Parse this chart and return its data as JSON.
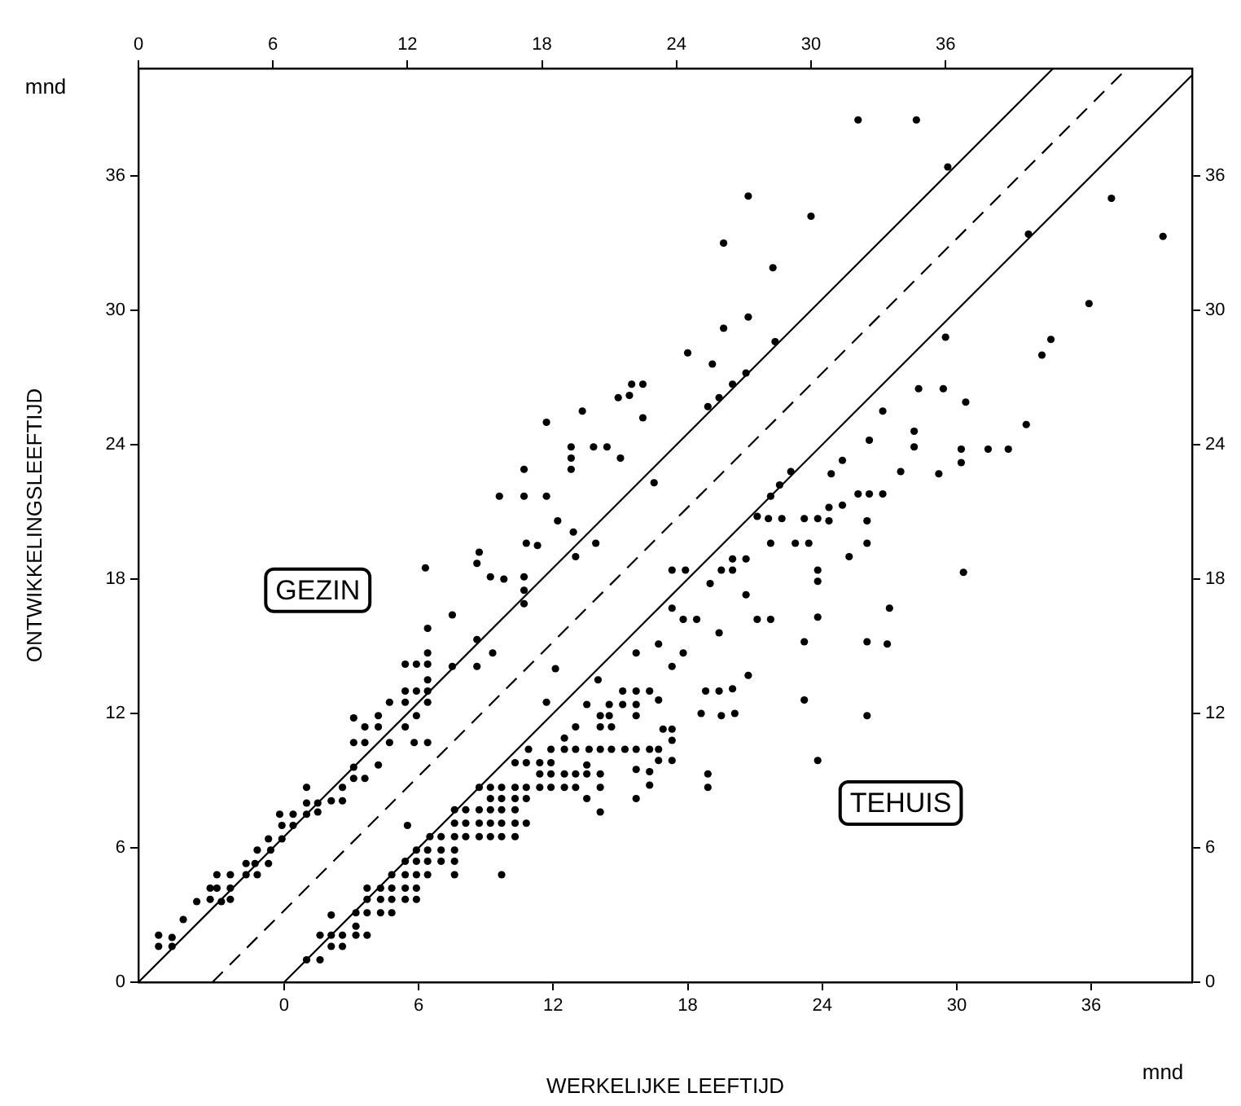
{
  "chart_data": {
    "type": "scatter",
    "xlabel": "WERKELIJKE LEEFTIJD",
    "ylabel": "ONTWIKKELINGSLEEFTIJD",
    "annotations": [
      "mnd",
      "mnd"
    ],
    "xlim": [
      -6.5,
      40.5
    ],
    "xticks": [
      0,
      6,
      12,
      18,
      24,
      30,
      36
    ],
    "x2lim": [
      0,
      47
    ],
    "x2ticks": [
      0,
      6,
      12,
      18,
      24,
      30,
      36
    ],
    "ylim": [
      0,
      40.8
    ],
    "yticks": [
      0,
      6,
      12,
      18,
      24,
      30,
      36
    ],
    "y2lim": [
      0,
      40.8
    ],
    "y2ticks": [
      0,
      6,
      12,
      18,
      24,
      30,
      36
    ],
    "grid": false,
    "marker": "circle",
    "series": [
      {
        "name": "GEZIN",
        "axis": "x2",
        "color": "#000000",
        "x": [
          0.9,
          1.5,
          0.9,
          1.5,
          2.0,
          2.6,
          3.2,
          3.7,
          4.1,
          3.2,
          3.5,
          4.1,
          3.5,
          4.1,
          4.8,
          5.2,
          4.8,
          5.3,
          5.8,
          5.3,
          5.9,
          5.8,
          6.4,
          6.4,
          6.9,
          6.3,
          6.9,
          7.5,
          7.5,
          8.0,
          7.5,
          8.0,
          8.6,
          9.1,
          9.1,
          9.6,
          9.6,
          10.1,
          9.6,
          10.1,
          11.2,
          10.1,
          10.7,
          9.6,
          10.7,
          10.7,
          11.2,
          11.9,
          11.9,
          12.4,
          12.9,
          11.9,
          12.4,
          12.3,
          12.9,
          12.9,
          11.9,
          12.4,
          12.9,
          12.9,
          12.9,
          12.9,
          12.8,
          14.0,
          14.0,
          15.1,
          15.8,
          15.1,
          15.2,
          15.1,
          15.7,
          16.3,
          17.2,
          17.2,
          17.2,
          17.3,
          17.8,
          16.1,
          17.2,
          18.2,
          27.2,
          30.0,
          26.1,
          28.3,
          27.2,
          26.1,
          24.5,
          25.6,
          28.4,
          27.1,
          26.5,
          25.9,
          25.4,
          22.0,
          22.5,
          21.4,
          21.9,
          22.5,
          19.8,
          18.2,
          19.3,
          20.3,
          20.9,
          19.3,
          19.3,
          21.5,
          17.2,
          18.7,
          19.4,
          20.4,
          19.5,
          23.0,
          32.1,
          34.7,
          36.1
        ],
        "values": [
          2.1,
          2.0,
          1.6,
          1.6,
          2.8,
          3.6,
          3.7,
          3.6,
          3.7,
          4.2,
          4.2,
          4.2,
          4.8,
          4.8,
          5.3,
          5.3,
          4.8,
          4.8,
          5.3,
          5.9,
          5.9,
          6.4,
          6.4,
          7.0,
          7.0,
          7.5,
          7.5,
          7.5,
          8.0,
          8.0,
          8.7,
          7.6,
          8.1,
          8.1,
          8.7,
          9.1,
          9.6,
          9.1,
          10.7,
          10.7,
          10.7,
          11.4,
          11.4,
          11.8,
          11.9,
          9.7,
          12.5,
          12.5,
          13.0,
          13.0,
          13.0,
          11.4,
          11.9,
          10.7,
          10.7,
          12.5,
          14.2,
          14.2,
          14.2,
          14.7,
          13.5,
          15.8,
          18.5,
          16.4,
          14.1,
          15.3,
          14.7,
          14.1,
          19.2,
          18.7,
          18.1,
          18.0,
          18.1,
          17.5,
          16.9,
          19.6,
          19.5,
          21.7,
          21.7,
          21.7,
          35.1,
          34.2,
          33.0,
          31.9,
          29.7,
          29.2,
          28.1,
          27.6,
          28.6,
          27.2,
          26.7,
          26.1,
          25.7,
          26.7,
          26.7,
          26.1,
          26.2,
          25.2,
          25.5,
          25.0,
          23.9,
          23.9,
          23.9,
          23.4,
          22.9,
          23.4,
          22.9,
          20.6,
          20.1,
          19.6,
          19.0,
          22.3,
          38.5,
          38.5,
          36.4
        ]
      },
      {
        "name": "TEHUIS",
        "axis": "y2",
        "color": "#000000",
        "x": [
          1.0,
          1.6,
          2.1,
          2.6,
          1.6,
          2.1,
          2.6,
          3.2,
          3.7,
          3.2,
          2.1,
          3.2,
          3.7,
          4.3,
          4.8,
          3.7,
          4.3,
          4.8,
          5.4,
          5.9,
          3.7,
          4.3,
          4.8,
          5.4,
          5.9,
          4.8,
          5.4,
          5.9,
          6.4,
          7.6,
          5.4,
          5.9,
          6.4,
          7.0,
          7.6,
          5.9,
          6.4,
          7.0,
          7.6,
          6.5,
          7.0,
          7.6,
          8.1,
          8.7,
          9.2,
          9.7,
          10.3,
          7.6,
          8.1,
          8.7,
          9.2,
          9.7,
          10.3,
          7.6,
          8.1,
          8.7,
          9.2,
          9.7,
          10.3,
          9.2,
          9.7,
          10.3,
          10.8,
          8.7,
          9.2,
          9.7,
          10.3,
          10.8,
          11.4,
          11.9,
          12.5,
          13.0,
          11.4,
          11.9,
          12.5,
          13.0,
          13.5,
          14.1,
          10.3,
          10.8,
          11.4,
          11.9,
          10.9,
          11.9,
          12.5,
          13.0,
          13.6,
          14.1,
          14.6,
          15.2,
          15.7,
          16.3,
          11.7,
          13.5,
          14.1,
          14.5,
          14.5,
          15.1,
          15.7,
          15.1,
          15.7,
          16.3,
          15.7,
          15.7,
          16.3,
          16.3,
          15.7,
          14.1,
          13.5,
          13.5,
          14.1,
          12.5,
          13.0,
          14.1,
          14.6,
          10.8,
          9.7,
          5.5,
          12.1,
          14.0,
          15.7,
          33.2,
          36.9,
          39.2,
          35.9,
          33.8,
          34.2,
          29.5,
          28.3,
          29.4,
          30.4,
          26.7,
          33.1,
          28.1,
          28.1,
          30.2,
          31.4,
          32.3,
          30.2,
          26.1,
          24.9,
          27.5,
          29.2,
          24.4,
          22.6,
          22.1,
          21.7,
          25.6,
          26.1,
          26.7,
          24.9,
          24.3,
          21.1,
          21.6,
          22.2,
          23.2,
          23.8,
          24.3,
          26.0,
          21.7,
          22.8,
          23.4,
          26.0,
          25.2,
          30.3,
          20.0,
          20.6,
          19.5,
          20.0,
          19.0,
          17.3,
          17.9,
          20.6,
          23.8,
          23.8,
          17.3,
          17.8,
          18.4,
          21.1,
          21.7,
          23.8,
          27.0,
          19.4,
          16.7,
          17.8,
          17.3,
          23.2,
          26.0,
          26.9,
          20.7,
          18.8,
          19.4,
          20.0,
          18.6,
          19.5,
          20.1,
          23.2,
          26.0,
          16.7,
          16.9,
          17.3,
          17.3,
          16.7,
          16.7,
          17.3,
          23.8,
          18.9,
          18.9
        ],
        "values": [
          1.0,
          1.0,
          1.6,
          1.6,
          2.1,
          2.1,
          2.1,
          2.1,
          2.1,
          2.5,
          3.0,
          3.1,
          3.1,
          3.1,
          3.1,
          3.7,
          3.7,
          3.7,
          3.7,
          3.7,
          4.2,
          4.2,
          4.2,
          4.2,
          4.2,
          4.8,
          4.8,
          4.8,
          4.8,
          4.8,
          5.4,
          5.4,
          5.4,
          5.4,
          5.4,
          5.9,
          5.9,
          5.9,
          5.9,
          6.5,
          6.5,
          6.5,
          6.5,
          6.5,
          6.5,
          6.5,
          6.5,
          7.1,
          7.1,
          7.1,
          7.1,
          7.1,
          7.1,
          7.7,
          7.7,
          7.7,
          7.7,
          7.7,
          7.7,
          8.2,
          8.2,
          8.2,
          8.2,
          8.7,
          8.7,
          8.7,
          8.7,
          8.7,
          8.7,
          8.7,
          8.7,
          8.7,
          9.3,
          9.3,
          9.3,
          9.3,
          9.3,
          9.3,
          9.8,
          9.8,
          9.8,
          9.8,
          10.4,
          10.4,
          10.4,
          10.4,
          10.4,
          10.4,
          10.4,
          10.4,
          10.4,
          10.4,
          12.5,
          12.4,
          11.9,
          11.9,
          12.4,
          12.4,
          12.4,
          13.0,
          13.0,
          13.0,
          11.9,
          9.5,
          9.4,
          8.8,
          8.2,
          7.6,
          8.2,
          9.7,
          8.7,
          10.9,
          11.4,
          11.4,
          11.4,
          7.1,
          4.8,
          7.0,
          14.0,
          13.5,
          14.7,
          33.4,
          35.0,
          33.3,
          30.3,
          28.0,
          28.7,
          28.8,
          26.5,
          26.5,
          25.9,
          25.5,
          24.9,
          24.6,
          23.9,
          23.8,
          23.8,
          23.8,
          23.2,
          24.2,
          23.3,
          22.8,
          22.7,
          22.7,
          22.8,
          22.2,
          21.7,
          21.8,
          21.8,
          21.8,
          21.3,
          21.2,
          20.8,
          20.7,
          20.7,
          20.7,
          20.7,
          20.6,
          20.6,
          19.6,
          19.6,
          19.6,
          19.6,
          19.0,
          18.3,
          18.9,
          18.9,
          18.4,
          18.4,
          17.8,
          18.4,
          18.4,
          17.3,
          18.4,
          17.9,
          16.7,
          16.2,
          16.2,
          16.2,
          16.2,
          16.3,
          16.7,
          15.6,
          15.1,
          14.7,
          14.1,
          15.2,
          15.2,
          15.1,
          13.7,
          13.0,
          13.0,
          13.1,
          12.0,
          11.9,
          12.0,
          12.6,
          11.9,
          12.6,
          11.3,
          11.3,
          10.8,
          10.4,
          9.9,
          9.9,
          9.9,
          9.3,
          8.7
        ]
      },
      {
        "type": "line",
        "axis": "x2",
        "color": "#000000",
        "marker": "none",
        "line_style": "solid",
        "x": [
          0,
          40.8
        ],
        "values": [
          0,
          40.8
        ]
      },
      {
        "type": "line",
        "axis": "x2",
        "color": "#000000",
        "marker": "none",
        "line_style": "dashed",
        "x": [
          3.3,
          44.1
        ],
        "values": [
          0,
          40.8
        ]
      },
      {
        "type": "line",
        "axis": "y2",
        "color": "#000000",
        "marker": "none",
        "line_style": "solid",
        "x": [
          0,
          40.5
        ],
        "values": [
          0,
          40.5
        ]
      }
    ]
  }
}
